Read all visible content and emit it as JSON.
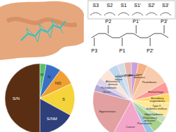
{
  "peptide_diagram": {
    "subsites": [
      "S3",
      "S2",
      "S1",
      "S1'",
      "S2'",
      "S3'"
    ],
    "residues": [
      "P3",
      "P2",
      "P1",
      "P1'",
      "P2'",
      "P3'"
    ]
  },
  "chart_data": [
    {
      "type": "pie",
      "categories": [
        "N'",
        "N",
        "ND",
        "S",
        "S/NM",
        "S/N"
      ],
      "values": [
        3,
        7,
        8,
        15,
        17,
        50
      ],
      "colors": [
        "#5bbf6a",
        "#3b6fc4",
        "#f0a030",
        "#f5d33a",
        "#2e3f7a",
        "#5a2e12"
      ]
    },
    {
      "type": "pie",
      "categories": [
        "Fibrosis",
        "Liver diseases",
        "Thrombosis",
        "Hemorrhage",
        "Hereditary angioedema",
        "Type II diabetes mellitus",
        "Hyperlipidemia",
        "Respiratory diseases",
        "Pancreatitis",
        "Cancer",
        "Hypertension",
        "Ulcers",
        "Periodontitis",
        "Alzheimer's disease",
        "Heart failure",
        "COVID-19",
        "Stroke"
      ],
      "values": [
        3,
        4,
        10,
        5,
        4,
        6,
        3,
        5,
        3,
        15,
        21,
        3,
        3,
        5,
        4,
        3,
        3
      ],
      "colors": [
        "#c9a0dc",
        "#f4b183",
        "#f8cbad",
        "#ff9999",
        "#ffd966",
        "#ffe699",
        "#c5e0b4",
        "#a9d18e",
        "#9dc3e6",
        "#f4a6c8",
        "#e2a0a0",
        "#b4a7d6",
        "#d9d2e9",
        "#fce4d6",
        "#bdd7ee",
        "#d6dce5",
        "#e6b8af"
      ]
    }
  ]
}
